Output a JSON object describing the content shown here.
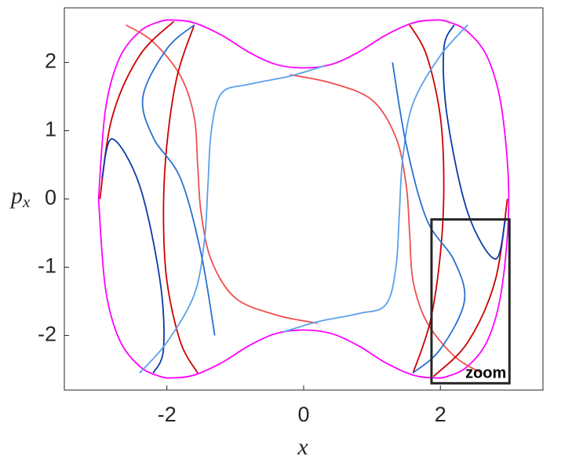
{
  "chart_data": {
    "type": "line",
    "xlabel": "x",
    "ylabel": {
      "main": "p",
      "sub": "x"
    },
    "xlim": [
      -3.5,
      3.5
    ],
    "ylim": [
      -2.8,
      2.8
    ],
    "xticks": [
      -2,
      0,
      2
    ],
    "yticks": [
      -2,
      -1,
      0,
      1,
      2
    ],
    "series": [
      {
        "color": "#ff00ff",
        "x": [
          -3.0,
          -2.9,
          -2.7,
          -2.4,
          -2.1,
          -1.9,
          -1.6,
          -1.2,
          -0.8,
          -0.4,
          0,
          0.4,
          0.8,
          1.2,
          1.6,
          1.9,
          2.1,
          2.4,
          2.7,
          2.9,
          3.0,
          2.9,
          2.7,
          2.4,
          2.1,
          1.9,
          1.6,
          1.2,
          0.8,
          0.4,
          0,
          -0.4,
          -0.8,
          -1.2,
          -1.6,
          -1.9,
          -2.1,
          -2.4,
          -2.7,
          -2.9,
          -3.0
        ],
        "values": [
          0,
          1.3,
          2.05,
          2.45,
          2.6,
          2.62,
          2.58,
          2.4,
          2.15,
          1.97,
          1.92,
          1.97,
          2.15,
          2.4,
          2.58,
          2.62,
          2.6,
          2.45,
          2.05,
          1.3,
          0,
          -1.3,
          -2.05,
          -2.45,
          -2.6,
          -2.62,
          -2.58,
          -2.4,
          -2.15,
          -1.97,
          -1.92,
          -1.97,
          -2.15,
          -2.4,
          -2.58,
          -2.62,
          -2.6,
          -2.45,
          -2.05,
          -1.3,
          0
        ]
      },
      {
        "color": "#f05050",
        "x": [
          -0.2,
          0.4,
          1.0,
          1.35,
          1.5,
          1.55,
          1.6,
          1.8,
          2.2,
          2.6
        ],
        "values": [
          1.82,
          1.7,
          1.45,
          0.9,
          0.2,
          -0.5,
          -1.2,
          -1.8,
          -2.3,
          -2.55
        ]
      },
      {
        "color": "#f05050",
        "x": [
          0.2,
          -0.4,
          -1.0,
          -1.35,
          -1.5,
          -1.55,
          -1.6,
          -1.8,
          -2.2,
          -2.6
        ],
        "values": [
          -1.82,
          -1.7,
          -1.45,
          -0.9,
          -0.2,
          0.5,
          1.2,
          1.8,
          2.3,
          2.55
        ]
      },
      {
        "color": "#cc0000",
        "x": [
          -1.6,
          -1.85,
          -2.0,
          -2.05,
          -2.0,
          -1.8,
          -1.55
        ],
        "values": [
          2.55,
          1.8,
          0.8,
          -0.2,
          -1.2,
          -2.1,
          -2.55
        ]
      },
      {
        "color": "#cc0000",
        "x": [
          1.6,
          1.85,
          2.0,
          2.05,
          2.0,
          1.8,
          1.55
        ],
        "values": [
          -2.55,
          -1.8,
          -0.8,
          0.2,
          1.2,
          2.1,
          2.55
        ]
      },
      {
        "color": "#cc0000",
        "x": [
          -1.9,
          -2.4,
          -2.8,
          -2.98
        ],
        "values": [
          2.6,
          2.1,
          1.2,
          0.0
        ]
      },
      {
        "color": "#cc0000",
        "x": [
          1.9,
          2.4,
          2.8,
          2.98
        ],
        "values": [
          -2.6,
          -2.1,
          -1.2,
          0.0
        ]
      },
      {
        "color": "#0a3aa8",
        "x": [
          -2.95,
          -2.8,
          -2.4,
          -2.1,
          -2.05,
          -2.2
        ],
        "values": [
          0.3,
          0.88,
          0.2,
          -1.2,
          -2.2,
          -2.55
        ]
      },
      {
        "color": "#0a3aa8",
        "x": [
          2.95,
          2.8,
          2.4,
          2.1,
          2.05,
          2.2
        ],
        "values": [
          -0.3,
          -0.88,
          -0.2,
          1.2,
          2.2,
          2.55
        ]
      },
      {
        "color": "#5aa0ea",
        "x": [
          0.3,
          -0.2,
          -0.8,
          -1.2,
          -1.35,
          -1.4,
          -1.45,
          -1.6,
          -2.0,
          -2.4
        ],
        "values": [
          1.95,
          1.8,
          1.68,
          1.55,
          1.0,
          0.2,
          -0.6,
          -1.4,
          -2.1,
          -2.55
        ]
      },
      {
        "color": "#5aa0ea",
        "x": [
          -0.3,
          0.2,
          0.8,
          1.2,
          1.35,
          1.4,
          1.45,
          1.6,
          2.0,
          2.4
        ],
        "values": [
          -1.95,
          -1.8,
          -1.68,
          -1.55,
          -1.0,
          -0.2,
          0.6,
          1.4,
          2.1,
          2.55
        ]
      },
      {
        "color": "#2a70d0",
        "x": [
          -1.6,
          -2.0,
          -2.35,
          -2.2,
          -1.8,
          -1.5,
          -1.3
        ],
        "values": [
          2.55,
          2.2,
          1.5,
          0.9,
          0.3,
          -0.8,
          -2.0
        ]
      },
      {
        "color": "#2a70d0",
        "x": [
          1.6,
          2.0,
          2.35,
          2.2,
          1.8,
          1.5,
          1.3
        ],
        "values": [
          -2.55,
          -2.2,
          -1.5,
          -0.9,
          -0.3,
          0.8,
          2.0
        ]
      }
    ],
    "annotations": [
      {
        "text": "zoom",
        "x": [
          1.87,
          3.01
        ],
        "y": [
          -2.7,
          -0.3
        ]
      }
    ]
  }
}
